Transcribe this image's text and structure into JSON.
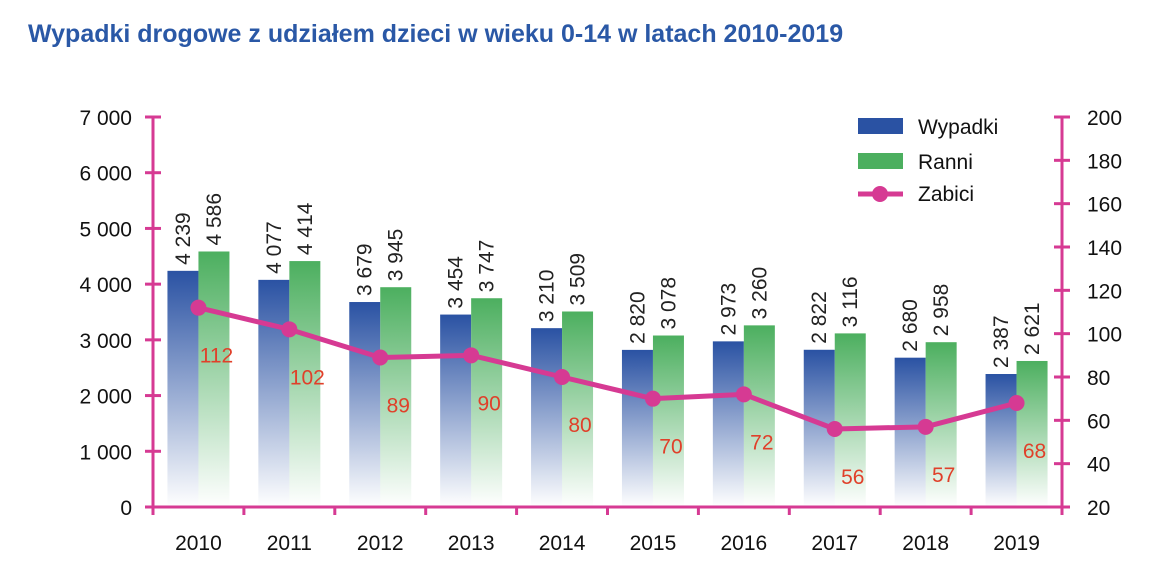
{
  "chart_data": {
    "type": "bar",
    "title": "Wypadki drogowe z udziałem dzieci w wieku 0-14 w latach 2010-2019",
    "categories": [
      "2010",
      "2011",
      "2012",
      "2013",
      "2014",
      "2015",
      "2016",
      "2017",
      "2018",
      "2019"
    ],
    "series": [
      {
        "name": "Wypadki",
        "type": "bar",
        "axis": "left",
        "values": [
          4239,
          4077,
          3679,
          3454,
          3210,
          2820,
          2973,
          2822,
          2680,
          2387
        ],
        "labels": [
          "4 239",
          "4 077",
          "3 679",
          "3 454",
          "3 210",
          "2 820",
          "2 973",
          "2 822",
          "2 680",
          "2 387"
        ]
      },
      {
        "name": "Ranni",
        "type": "bar",
        "axis": "left",
        "values": [
          4586,
          4414,
          3945,
          3747,
          3509,
          3078,
          3260,
          3116,
          2958,
          2621
        ],
        "labels": [
          "4 586",
          "4 414",
          "3 945",
          "3 747",
          "3 509",
          "3 078",
          "3 260",
          "3 116",
          "2 958",
          "2 621"
        ]
      },
      {
        "name": "Zabici",
        "type": "line",
        "axis": "right",
        "values": [
          112,
          102,
          89,
          90,
          80,
          70,
          72,
          56,
          57,
          68
        ],
        "labels": [
          "112",
          "102",
          "89",
          "90",
          "80",
          "70",
          "72",
          "56",
          "57",
          "68"
        ]
      }
    ],
    "left_axis": {
      "ylim": [
        0,
        7000
      ],
      "ticks": [
        0,
        1000,
        2000,
        3000,
        4000,
        5000,
        6000,
        7000
      ],
      "tick_labels": [
        "0",
        "1 000",
        "2 000",
        "3 000",
        "4 000",
        "5 000",
        "6 000",
        "7 000"
      ]
    },
    "right_axis": {
      "ylim": [
        20,
        200
      ],
      "ticks": [
        20,
        40,
        60,
        80,
        100,
        120,
        140,
        160,
        180,
        200
      ],
      "tick_labels": [
        "20",
        "40",
        "60",
        "80",
        "100",
        "120",
        "140",
        "160",
        "180",
        "200"
      ]
    },
    "legend_position": "top-right",
    "grid": false,
    "colors": {
      "wypadki": "#2a52a3",
      "ranni": "#4caf5f",
      "zabici": "#d63a93",
      "axis": "#d63a93",
      "data_label": "#e0402a",
      "title": "#2a58a6"
    }
  }
}
